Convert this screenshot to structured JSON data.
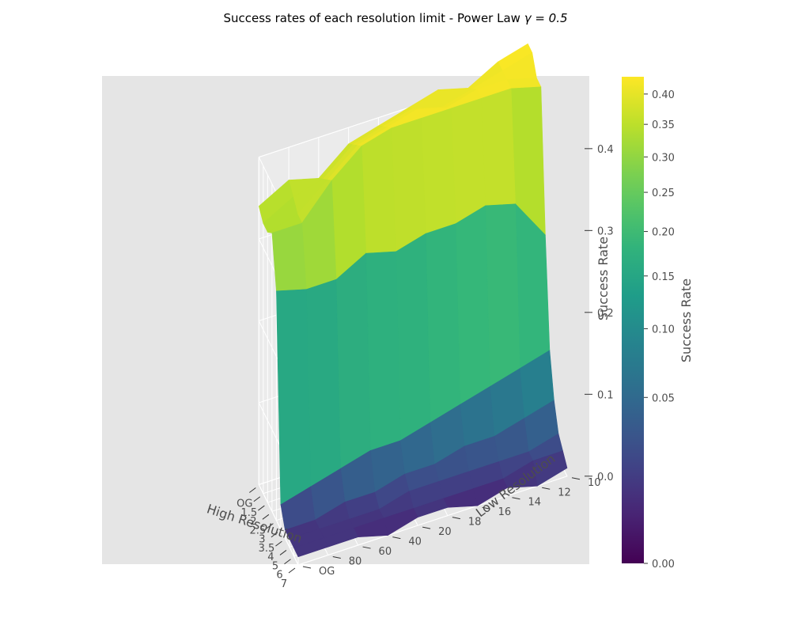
{
  "title_text": "Success rates of each resolution limit - Power Law",
  "title_gamma": "γ = 0.5",
  "chart_data": {
    "type": "surface3d",
    "x_axis_label": "High Resolution",
    "y_axis_label": "Low Resolution",
    "z_axis_label": "Success Rate",
    "x_ticks": [
      "OG",
      "1.5",
      "2",
      "2.5",
      "3",
      "3.5",
      "4",
      "5",
      "6",
      "7"
    ],
    "y_ticks": [
      "OG",
      "80",
      "60",
      "40",
      "20",
      "18",
      "16",
      "14",
      "12",
      "10"
    ],
    "z_ticks": [
      "0.0",
      "0.1",
      "0.2",
      "0.3",
      "0.4"
    ],
    "zlim": [
      0,
      0.43
    ],
    "z": [
      [
        0.34,
        0.36,
        0.35,
        0.38,
        0.39,
        0.4,
        0.41,
        0.4,
        0.42,
        0.43
      ],
      [
        0.33,
        0.35,
        0.36,
        0.39,
        0.4,
        0.41,
        0.4,
        0.41,
        0.42,
        0.43
      ],
      [
        0.33,
        0.34,
        0.37,
        0.4,
        0.41,
        0.42,
        0.41,
        0.42,
        0.42,
        0.41
      ],
      [
        0.34,
        0.34,
        0.38,
        0.41,
        0.42,
        0.42,
        0.42,
        0.42,
        0.42,
        0.41
      ],
      [
        0.28,
        0.27,
        0.27,
        0.29,
        0.28,
        0.29,
        0.29,
        0.3,
        0.29,
        0.24
      ],
      [
        0.03,
        0.04,
        0.05,
        0.06,
        0.06,
        0.07,
        0.08,
        0.09,
        0.1,
        0.11
      ],
      [
        0.01,
        0.01,
        0.02,
        0.02,
        0.03,
        0.03,
        0.04,
        0.04,
        0.05,
        0.06
      ],
      [
        0.01,
        0.01,
        0.01,
        0.01,
        0.02,
        0.02,
        0.02,
        0.02,
        0.02,
        0.03
      ],
      [
        0.01,
        0.01,
        0.01,
        0.01,
        0.01,
        0.01,
        0.01,
        0.01,
        0.02,
        0.02
      ],
      [
        0.01,
        0.01,
        0.01,
        0.0,
        0.01,
        0.01,
        0.0,
        0.01,
        0.0,
        0.01
      ]
    ],
    "colorbar": {
      "label": "Success Rate",
      "ticks": [
        "0.00",
        "0.05",
        "0.10",
        "0.15",
        "0.20",
        "0.25",
        "0.30",
        "0.35",
        "0.40"
      ],
      "tick_values": [
        0,
        0.05,
        0.1,
        0.15,
        0.2,
        0.25,
        0.3,
        0.35,
        0.4
      ],
      "scale": "power 0.5",
      "colormap": "viridis",
      "range": [
        0,
        0.43
      ]
    },
    "grid": true,
    "background": "#e5e5e5"
  }
}
